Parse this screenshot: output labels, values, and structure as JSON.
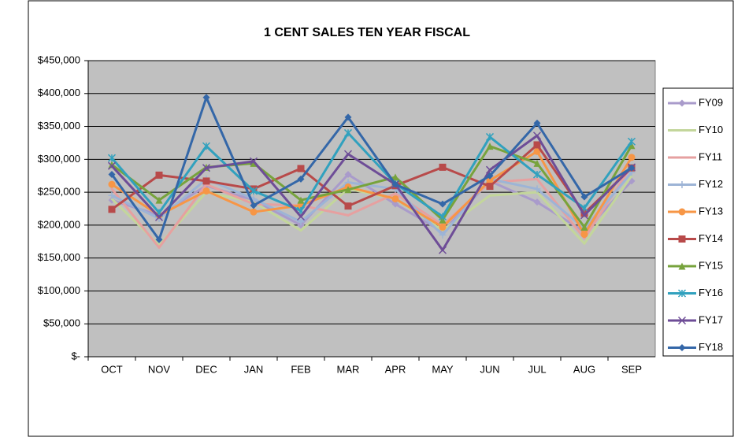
{
  "chart_data": {
    "type": "line",
    "title": "1 CENT SALES TEN YEAR FISCAL",
    "categories": [
      "OCT",
      "NOV",
      "DEC",
      "JAN",
      "FEB",
      "MAR",
      "APR",
      "MAY",
      "JUN",
      "JUL",
      "AUG",
      "SEP"
    ],
    "ylim": [
      0,
      450000
    ],
    "yticks": [
      {
        "value": 0,
        "label": "$-"
      },
      {
        "value": 50000,
        "label": "$50,000"
      },
      {
        "value": 100000,
        "label": "$100,000"
      },
      {
        "value": 150000,
        "label": "$150,000"
      },
      {
        "value": 200000,
        "label": "$200,000"
      },
      {
        "value": 250000,
        "label": "$250,000"
      },
      {
        "value": 300000,
        "label": "$300,000"
      },
      {
        "value": 350000,
        "label": "$350,000"
      },
      {
        "value": 400000,
        "label": "$400,000"
      },
      {
        "value": 450000,
        "label": "$450,000"
      }
    ],
    "grid": true,
    "legend": "right",
    "series": [
      {
        "name": "FY09",
        "color": "#a99bcb",
        "marker": "diamond",
        "values": [
          238000,
          215000,
          260000,
          238000,
          200000,
          277000,
          232000,
          190000,
          267000,
          235000,
          190000,
          267000
        ]
      },
      {
        "name": "FY10",
        "color": "#c3d69b",
        "marker": "none",
        "values": [
          240000,
          170000,
          250000,
          235000,
          192000,
          255000,
          240000,
          192000,
          245000,
          250000,
          172000,
          275000
        ]
      },
      {
        "name": "FY11",
        "color": "#e6a0a0",
        "marker": "none",
        "values": [
          255000,
          166000,
          262000,
          232000,
          230000,
          215000,
          248000,
          200000,
          265000,
          270000,
          180000,
          290000
        ]
      },
      {
        "name": "FY12",
        "color": "#9db4d6",
        "marker": "plus",
        "values": [
          245000,
          210000,
          270000,
          240000,
          205000,
          265000,
          255000,
          185000,
          270000,
          255000,
          195000,
          280000
        ]
      },
      {
        "name": "FY13",
        "color": "#f79646",
        "marker": "circle",
        "values": [
          262000,
          215000,
          252000,
          220000,
          230000,
          258000,
          240000,
          197000,
          268000,
          312000,
          186000,
          303000
        ]
      },
      {
        "name": "FY14",
        "color": "#b84a4a",
        "marker": "square",
        "values": [
          224000,
          276000,
          267000,
          255000,
          286000,
          229000,
          260000,
          288000,
          259000,
          322000,
          218000,
          287000
        ]
      },
      {
        "name": "FY15",
        "color": "#77a33c",
        "marker": "triangle",
        "values": [
          292000,
          238000,
          288000,
          294000,
          238000,
          254000,
          273000,
          208000,
          320000,
          294000,
          197000,
          321000
        ]
      },
      {
        "name": "FY16",
        "color": "#31a1be",
        "marker": "star",
        "values": [
          302000,
          219000,
          320000,
          252000,
          222000,
          340000,
          263000,
          213000,
          334000,
          277000,
          226000,
          327000
        ]
      },
      {
        "name": "FY17",
        "color": "#6e4d97",
        "marker": "x",
        "values": [
          290000,
          212000,
          287000,
          297000,
          213000,
          308000,
          262000,
          162000,
          284000,
          336000,
          215000,
          288000
        ]
      },
      {
        "name": "FY18",
        "color": "#3467a8",
        "marker": "diamond",
        "values": [
          277000,
          178000,
          394000,
          230000,
          270000,
          364000,
          262000,
          232000,
          275000,
          355000,
          243000,
          287000
        ]
      }
    ]
  }
}
